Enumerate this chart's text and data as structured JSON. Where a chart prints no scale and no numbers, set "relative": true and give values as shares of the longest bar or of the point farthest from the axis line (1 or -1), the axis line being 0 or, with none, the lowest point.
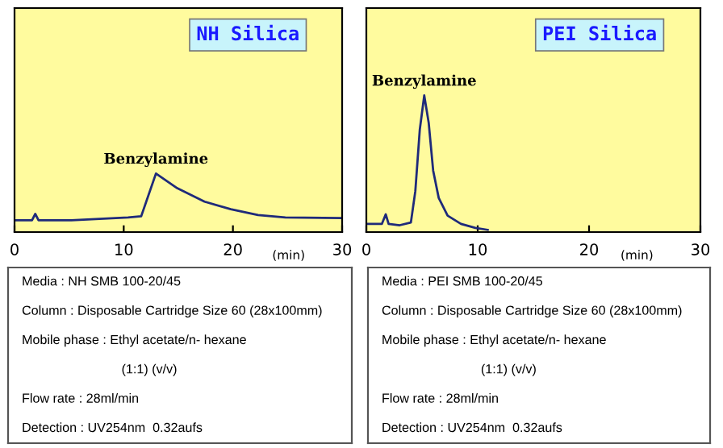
{
  "chart_data": [
    {
      "type": "line",
      "title": "NH Silica",
      "xlabel": "(min)",
      "xlim": [
        0,
        30
      ],
      "xticks": [
        0,
        10,
        20,
        30
      ],
      "relative": true,
      "grid": false,
      "legend": false,
      "series": [
        {
          "color": "#1f2a7a",
          "x": [
            0,
            1.6,
            1.9,
            2.2,
            5.2,
            10.4,
            11.6,
            12.95,
            14.9,
            17.4,
            19.8,
            22.3,
            24.8,
            30
          ],
          "values": [
            0.2,
            0.2,
            0.31,
            0.2,
            0.2,
            0.25,
            0.27,
            1.0,
            0.75,
            0.52,
            0.39,
            0.29,
            0.25,
            0.24
          ]
        }
      ],
      "annotations": [
        {
          "text": "Benzylamine",
          "x": 12.95,
          "y": 1.0
        },
        "Media : NH SMB 100-20/45",
        "Column : Disposable Cartridge Size 60 (28x100mm)",
        "Mobile phase : Ethyl acetate/n- hexane",
        "(1:1) (v/v)",
        "Flow rate : 28ml/min",
        "Detection : UV254nm  0.32aufs"
      ]
    },
    {
      "type": "line",
      "title": "PEI Silica",
      "xlabel": "(min)",
      "xlim": [
        0,
        30
      ],
      "xticks": [
        0,
        10,
        20,
        30
      ],
      "relative": true,
      "grid": false,
      "legend": false,
      "series": [
        {
          "color": "#1f2a7a",
          "x": [
            0,
            1.4,
            1.74,
            2.0,
            3.0,
            4.0,
            4.4,
            4.8,
            5.2,
            5.6,
            6.0,
            6.5,
            7.3,
            8.5,
            9.8,
            10.9
          ],
          "values": [
            0.06,
            0.06,
            0.13,
            0.06,
            0.05,
            0.07,
            0.3,
            0.75,
            1.0,
            0.8,
            0.45,
            0.25,
            0.12,
            0.06,
            0.03,
            0.016
          ]
        }
      ],
      "annotations": [
        {
          "text": "Benzylamine",
          "x": 5.2,
          "y": 1.0
        },
        "Media : PEI SMB 100-20/45",
        "Column : Disposable Cartridge Size 60 (28x100mm)",
        "Mobile phase : Ethyl acetate/n- hexane",
        "(1:1) (v/v)",
        "Flow rate : 28ml/min",
        "Detection : UV254nm  0.32aufs"
      ]
    }
  ]
}
